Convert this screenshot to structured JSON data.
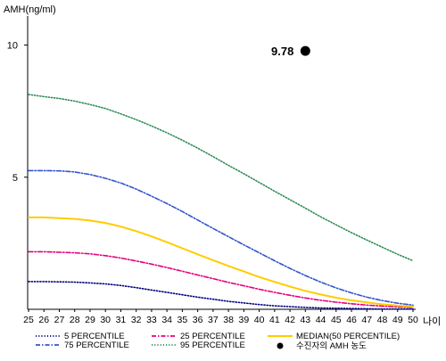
{
  "chart_data": {
    "type": "line",
    "ylabel": "AMH(ng/ml)",
    "xlabel": "나이",
    "x": [
      25,
      26,
      27,
      28,
      29,
      30,
      31,
      32,
      33,
      34,
      35,
      36,
      37,
      38,
      39,
      40,
      41,
      42,
      43,
      44,
      45,
      46,
      47,
      48,
      49,
      50
    ],
    "x_tick_labels": [
      "25",
      "26",
      "27",
      "28",
      "29",
      "30",
      "31",
      "32",
      "33",
      "34",
      "35",
      "36",
      "37",
      "38",
      "39",
      "40",
      "41",
      "42",
      "43",
      "44",
      "45",
      "46",
      "47",
      "48",
      "49",
      "50"
    ],
    "ylim": [
      0,
      11.1
    ],
    "y_ticks": [
      5,
      10
    ],
    "y_tick_labels": [
      "5",
      "10"
    ],
    "grid": false,
    "legend_position": "bottom",
    "series": [
      {
        "name": "5 PERCENTILE",
        "color": "#000080",
        "style": "dotted",
        "values": [
          1.05,
          1.05,
          1.04,
          1.03,
          1.0,
          0.96,
          0.9,
          0.82,
          0.73,
          0.64,
          0.55,
          0.46,
          0.38,
          0.3,
          0.24,
          0.18,
          0.13,
          0.1,
          0.07,
          0.05,
          0.04,
          0.03,
          0.02,
          0.01,
          0.01,
          0.01
        ]
      },
      {
        "name": "25 PERCENTILE",
        "color": "#e6007e",
        "style": "dash-dot",
        "values": [
          2.18,
          2.18,
          2.16,
          2.14,
          2.1,
          2.03,
          1.94,
          1.83,
          1.71,
          1.58,
          1.44,
          1.3,
          1.16,
          1.02,
          0.89,
          0.76,
          0.64,
          0.53,
          0.43,
          0.34,
          0.27,
          0.21,
          0.16,
          0.12,
          0.09,
          0.07
        ]
      },
      {
        "name": "MEDIAN(50 PERCENTILE)",
        "color": "#ffcc00",
        "style": "solid",
        "values": [
          3.48,
          3.48,
          3.45,
          3.42,
          3.36,
          3.27,
          3.13,
          2.96,
          2.76,
          2.54,
          2.31,
          2.08,
          1.86,
          1.64,
          1.43,
          1.22,
          1.04,
          0.86,
          0.7,
          0.56,
          0.44,
          0.34,
          0.26,
          0.19,
          0.14,
          0.1
        ]
      },
      {
        "name": "75 PERCENTILE",
        "color": "#3355cc",
        "style": "dash-dot",
        "values": [
          5.25,
          5.25,
          5.24,
          5.2,
          5.1,
          4.96,
          4.78,
          4.55,
          4.28,
          4.0,
          3.7,
          3.38,
          3.06,
          2.75,
          2.44,
          2.14,
          1.84,
          1.55,
          1.28,
          1.03,
          0.81,
          0.62,
          0.46,
          0.33,
          0.23,
          0.16
        ]
      },
      {
        "name": "95 PERCENTILE",
        "color": "#2e8b57",
        "style": "dotted",
        "values": [
          8.13,
          8.05,
          7.98,
          7.88,
          7.75,
          7.6,
          7.4,
          7.18,
          6.94,
          6.68,
          6.4,
          6.1,
          5.78,
          5.45,
          5.13,
          4.8,
          4.47,
          4.15,
          3.83,
          3.5,
          3.2,
          2.9,
          2.62,
          2.35,
          2.08,
          1.84
        ]
      }
    ],
    "points": [
      {
        "name": "수진자의 AMH 농도",
        "x": 43,
        "y": 9.78,
        "label": "9.78",
        "color": "#000000"
      }
    ]
  }
}
